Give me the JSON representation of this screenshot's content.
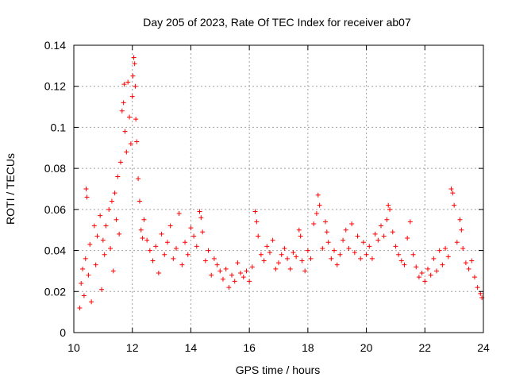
{
  "chart_data": {
    "type": "scatter",
    "title": "Day 205 of 2023, Rate Of TEC Index for receiver ab07",
    "xlabel": "GPS time / hours",
    "ylabel": "ROTI / TECUs",
    "xlim": [
      10,
      24
    ],
    "ylim": [
      0,
      0.14
    ],
    "xticks": [
      10,
      12,
      14,
      16,
      18,
      20,
      22,
      24
    ],
    "xtick_labels": [
      "10",
      "12",
      "14",
      "16",
      "18",
      "20",
      "22",
      "24"
    ],
    "yticks": [
      0,
      0.02,
      0.04,
      0.06,
      0.08,
      0.1,
      0.12,
      0.14
    ],
    "ytick_labels": [
      "0",
      "0.02",
      "0.04",
      "0.06",
      "0.08",
      "0.1",
      "0.12",
      "0.14"
    ],
    "grid": true,
    "marker": "plus",
    "color": "#ff0000",
    "series": [
      {
        "values": [
          [
            10.2,
            0.012
          ],
          [
            10.25,
            0.024
          ],
          [
            10.3,
            0.031
          ],
          [
            10.35,
            0.018
          ],
          [
            10.4,
            0.036
          ],
          [
            10.42,
            0.07
          ],
          [
            10.45,
            0.066
          ],
          [
            10.5,
            0.028
          ],
          [
            10.55,
            0.043
          ],
          [
            10.6,
            0.015
          ],
          [
            10.7,
            0.052
          ],
          [
            10.75,
            0.033
          ],
          [
            10.8,
            0.047
          ],
          [
            10.9,
            0.057
          ],
          [
            10.95,
            0.021
          ],
          [
            11.0,
            0.045
          ],
          [
            11.05,
            0.038
          ],
          [
            11.1,
            0.052
          ],
          [
            11.2,
            0.06
          ],
          [
            11.25,
            0.041
          ],
          [
            11.3,
            0.064
          ],
          [
            11.35,
            0.03
          ],
          [
            11.4,
            0.068
          ],
          [
            11.45,
            0.055
          ],
          [
            11.5,
            0.076
          ],
          [
            11.55,
            0.048
          ],
          [
            11.6,
            0.083
          ],
          [
            11.65,
            0.108
          ],
          [
            11.7,
            0.112
          ],
          [
            11.72,
            0.121
          ],
          [
            11.75,
            0.098
          ],
          [
            11.8,
            0.088
          ],
          [
            11.85,
            0.122
          ],
          [
            11.9,
            0.105
          ],
          [
            11.95,
            0.092
          ],
          [
            12.0,
            0.115
          ],
          [
            12.02,
            0.125
          ],
          [
            12.05,
            0.134
          ],
          [
            12.08,
            0.131
          ],
          [
            12.1,
            0.12
          ],
          [
            12.12,
            0.104
          ],
          [
            12.15,
            0.093
          ],
          [
            12.2,
            0.075
          ],
          [
            12.25,
            0.064
          ],
          [
            12.3,
            0.05
          ],
          [
            12.35,
            0.046
          ],
          [
            12.4,
            0.055
          ],
          [
            12.5,
            0.045
          ],
          [
            12.6,
            0.04
          ],
          [
            12.7,
            0.035
          ],
          [
            12.8,
            0.042
          ],
          [
            12.9,
            0.029
          ],
          [
            13.0,
            0.048
          ],
          [
            13.1,
            0.038
          ],
          [
            13.2,
            0.044
          ],
          [
            13.3,
            0.052
          ],
          [
            13.4,
            0.036
          ],
          [
            13.5,
            0.041
          ],
          [
            13.6,
            0.058
          ],
          [
            13.7,
            0.033
          ],
          [
            13.8,
            0.044
          ],
          [
            13.9,
            0.038
          ],
          [
            14.0,
            0.051
          ],
          [
            14.1,
            0.047
          ],
          [
            14.2,
            0.042
          ],
          [
            14.3,
            0.059
          ],
          [
            14.35,
            0.056
          ],
          [
            14.4,
            0.049
          ],
          [
            14.5,
            0.035
          ],
          [
            14.6,
            0.04
          ],
          [
            14.7,
            0.028
          ],
          [
            14.8,
            0.036
          ],
          [
            14.9,
            0.033
          ],
          [
            15.0,
            0.03
          ],
          [
            15.1,
            0.026
          ],
          [
            15.2,
            0.031
          ],
          [
            15.3,
            0.022
          ],
          [
            15.4,
            0.028
          ],
          [
            15.5,
            0.025
          ],
          [
            15.6,
            0.034
          ],
          [
            15.7,
            0.029
          ],
          [
            15.8,
            0.027
          ],
          [
            15.9,
            0.03
          ],
          [
            16.0,
            0.025
          ],
          [
            16.1,
            0.032
          ],
          [
            16.2,
            0.059
          ],
          [
            16.25,
            0.054
          ],
          [
            16.3,
            0.047
          ],
          [
            16.4,
            0.038
          ],
          [
            16.5,
            0.035
          ],
          [
            16.6,
            0.042
          ],
          [
            16.7,
            0.039
          ],
          [
            16.8,
            0.045
          ],
          [
            16.9,
            0.031
          ],
          [
            17.0,
            0.034
          ],
          [
            17.1,
            0.038
          ],
          [
            17.2,
            0.041
          ],
          [
            17.3,
            0.036
          ],
          [
            17.4,
            0.031
          ],
          [
            17.5,
            0.039
          ],
          [
            17.6,
            0.037
          ],
          [
            17.7,
            0.05
          ],
          [
            17.75,
            0.047
          ],
          [
            17.8,
            0.035
          ],
          [
            17.9,
            0.03
          ],
          [
            18.0,
            0.04
          ],
          [
            18.1,
            0.036
          ],
          [
            18.2,
            0.053
          ],
          [
            18.3,
            0.058
          ],
          [
            18.35,
            0.067
          ],
          [
            18.4,
            0.062
          ],
          [
            18.5,
            0.041
          ],
          [
            18.6,
            0.054
          ],
          [
            18.65,
            0.049
          ],
          [
            18.7,
            0.044
          ],
          [
            18.8,
            0.036
          ],
          [
            18.9,
            0.04
          ],
          [
            19.0,
            0.033
          ],
          [
            19.1,
            0.038
          ],
          [
            19.2,
            0.045
          ],
          [
            19.3,
            0.05
          ],
          [
            19.4,
            0.041
          ],
          [
            19.5,
            0.053
          ],
          [
            19.6,
            0.039
          ],
          [
            19.7,
            0.047
          ],
          [
            19.8,
            0.036
          ],
          [
            19.9,
            0.044
          ],
          [
            20.0,
            0.038
          ],
          [
            20.1,
            0.042
          ],
          [
            20.2,
            0.036
          ],
          [
            20.3,
            0.048
          ],
          [
            20.4,
            0.045
          ],
          [
            20.5,
            0.052
          ],
          [
            20.6,
            0.047
          ],
          [
            20.7,
            0.055
          ],
          [
            20.75,
            0.062
          ],
          [
            20.8,
            0.06
          ],
          [
            20.9,
            0.049
          ],
          [
            21.0,
            0.042
          ],
          [
            21.1,
            0.038
          ],
          [
            21.2,
            0.035
          ],
          [
            21.3,
            0.033
          ],
          [
            21.4,
            0.046
          ],
          [
            21.5,
            0.054
          ],
          [
            21.6,
            0.038
          ],
          [
            21.7,
            0.032
          ],
          [
            21.8,
            0.027
          ],
          [
            21.9,
            0.029
          ],
          [
            22.0,
            0.025
          ],
          [
            22.1,
            0.031
          ],
          [
            22.2,
            0.028
          ],
          [
            22.3,
            0.036
          ],
          [
            22.4,
            0.03
          ],
          [
            22.5,
            0.04
          ],
          [
            22.6,
            0.033
          ],
          [
            22.7,
            0.041
          ],
          [
            22.8,
            0.037
          ],
          [
            22.9,
            0.07
          ],
          [
            22.95,
            0.068
          ],
          [
            23.0,
            0.062
          ],
          [
            23.1,
            0.044
          ],
          [
            23.2,
            0.055
          ],
          [
            23.25,
            0.05
          ],
          [
            23.3,
            0.041
          ],
          [
            23.4,
            0.034
          ],
          [
            23.5,
            0.031
          ],
          [
            23.6,
            0.035
          ],
          [
            23.7,
            0.027
          ],
          [
            23.8,
            0.022
          ],
          [
            23.9,
            0.019
          ],
          [
            23.95,
            0.017
          ]
        ]
      }
    ]
  }
}
